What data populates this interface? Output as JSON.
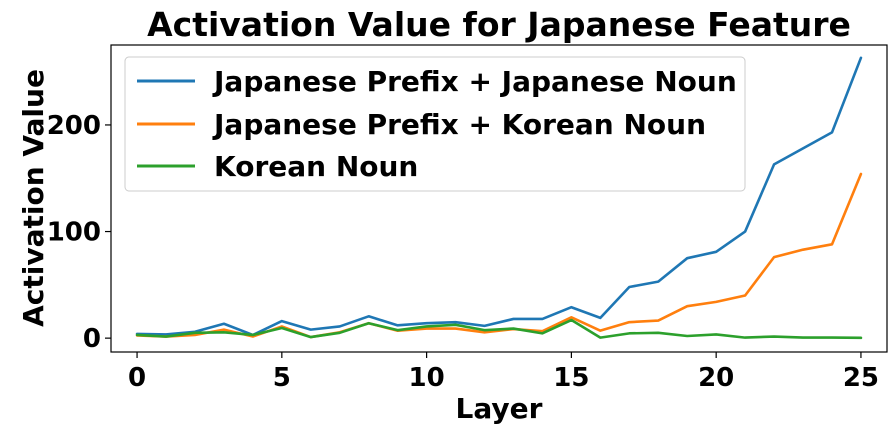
{
  "chart_data": {
    "type": "line",
    "title": "Activation Value for Japanese Feature",
    "xlabel": "Layer",
    "ylabel": "Activation Value",
    "xlim": [
      -0.9,
      25.9
    ],
    "ylim": [
      -13,
      275
    ],
    "xticks": [
      0,
      5,
      10,
      15,
      20,
      25
    ],
    "yticks": [
      0,
      100,
      200
    ],
    "grid": false,
    "legend_position": "upper-left",
    "x": [
      0,
      1,
      2,
      3,
      4,
      5,
      6,
      7,
      8,
      9,
      10,
      11,
      12,
      13,
      14,
      15,
      16,
      17,
      18,
      19,
      20,
      21,
      22,
      23,
      24,
      25
    ],
    "series": [
      {
        "name": "Japanese Prefix + Japanese Noun",
        "color": "#1f77b4",
        "values": [
          4,
          3.5,
          6,
          13.5,
          3,
          16,
          8,
          11,
          20.5,
          12,
          14,
          15,
          11.5,
          18,
          18,
          29,
          19,
          48,
          53,
          75,
          81,
          100,
          163,
          178,
          193,
          263
        ]
      },
      {
        "name": "Japanese Prefix + Korean Noun",
        "color": "#ff7f0e",
        "values": [
          2.5,
          1.5,
          3,
          8,
          1.5,
          11,
          1,
          5.5,
          14,
          7,
          9,
          9,
          5.5,
          8.5,
          6.5,
          19.5,
          7,
          15,
          16.5,
          30,
          34,
          40,
          76,
          83,
          88,
          154
        ]
      },
      {
        "name": "Korean Noun",
        "color": "#2ca02c",
        "values": [
          3,
          1.5,
          5,
          5.5,
          3,
          9.5,
          1,
          5,
          14,
          7.5,
          11,
          12.5,
          7.5,
          9,
          4.5,
          17,
          0.5,
          4.5,
          5,
          2,
          3.5,
          0.5,
          1.5,
          0.5,
          0.5,
          0.3
        ]
      }
    ]
  }
}
